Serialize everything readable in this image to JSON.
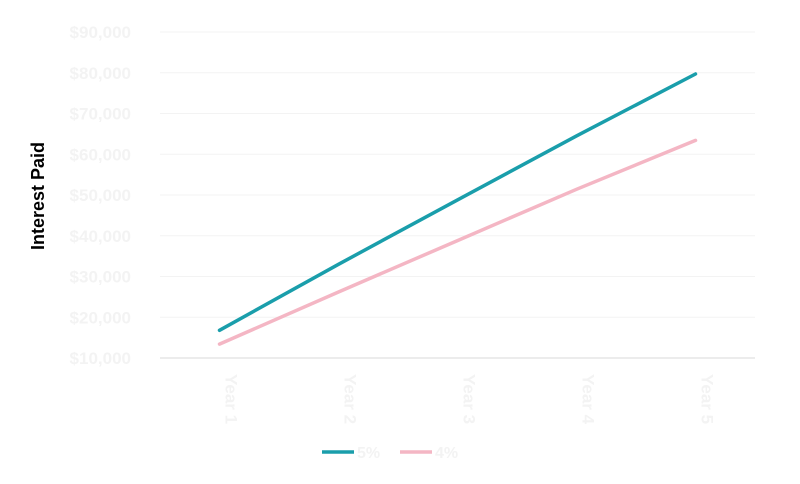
{
  "chart_data": {
    "type": "line",
    "title": "",
    "xlabel": "",
    "ylabel": "Interest Paid",
    "categories": [
      "Year 1",
      "Year 2",
      "Year 3",
      "Year 4",
      "Year 5"
    ],
    "y_ticks": [
      "$10,000",
      "$20,000",
      "$30,000",
      "$40,000",
      "$50,000",
      "$60,000",
      "$70,000",
      "$80,000",
      "$90,000"
    ],
    "ylim": [
      10000,
      90000
    ],
    "grid": true,
    "legend_position": "bottom",
    "series": [
      {
        "name": "5%",
        "color": "#1a9eab",
        "values": [
          16800,
          33000,
          48800,
          64500,
          79700
        ]
      },
      {
        "name": "4%",
        "color": "#f4b6c4",
        "values": [
          13400,
          26200,
          38800,
          51400,
          63400
        ]
      }
    ],
    "colors": {
      "text": "#f3f3f3",
      "grid": "#f3f3f3",
      "axis": "#d9d9d9"
    }
  }
}
